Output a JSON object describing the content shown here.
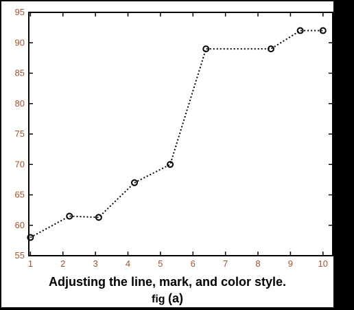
{
  "chart_data": {
    "type": "line",
    "line_style": "dotted",
    "marker": "circle",
    "line_color": "#000000",
    "tick_label_color": "#a0522d",
    "grid": false,
    "x": [
      1,
      2.2,
      3.1,
      4.2,
      5.3,
      6.4,
      8.4,
      9.3,
      10
    ],
    "y": [
      58,
      61.5,
      61.3,
      67,
      70,
      89,
      89,
      92,
      92
    ],
    "xlim": [
      0.95,
      10.3
    ],
    "ylim": [
      55,
      95
    ],
    "xticks": [
      1,
      2,
      3,
      4,
      5,
      6,
      7,
      8,
      9,
      10
    ],
    "yticks": [
      55,
      60,
      65,
      70,
      75,
      80,
      85,
      90,
      95
    ],
    "xlabel": "",
    "ylabel": ""
  },
  "caption": {
    "line1": "Adjusting the line, mark, and color style.",
    "fig": "fig",
    "sub": "(a)"
  }
}
